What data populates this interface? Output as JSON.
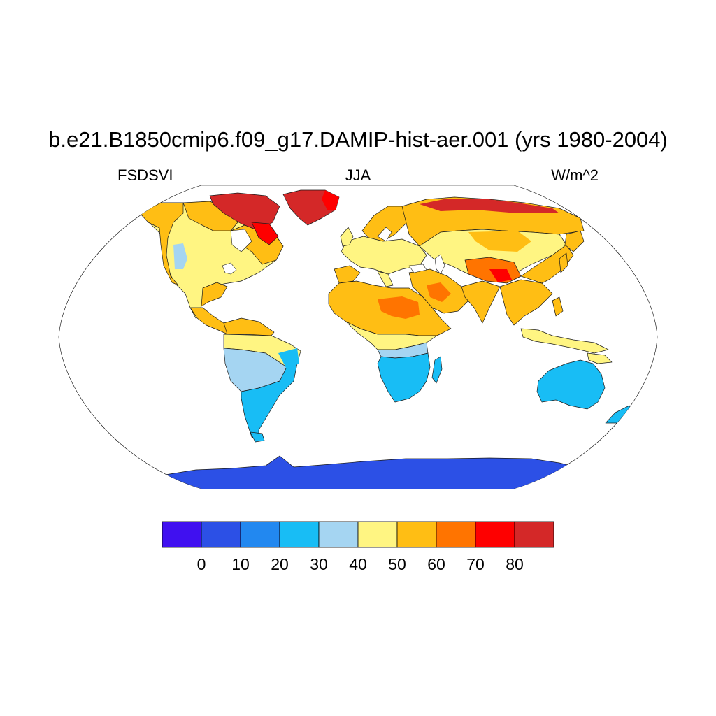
{
  "title": "b.e21.B1850cmip6.f09_g17.DAMIP-hist-aer.001 (yrs 1980-2004)",
  "left_string": "FSDSVI",
  "center_string": "JJA",
  "right_string": "W/m^2",
  "projection": "Robinson",
  "colorbar": {
    "levels": [
      "0",
      "10",
      "20",
      "30",
      "40",
      "50",
      "60",
      "70",
      "80"
    ],
    "colors": [
      "#4010f0",
      "#2c50e6",
      "#2288f0",
      "#18bdf5",
      "#a5d5f2",
      "#fff582",
      "#ffbe14",
      "#ff7400",
      "#fe0000",
      "#d42828"
    ]
  }
}
